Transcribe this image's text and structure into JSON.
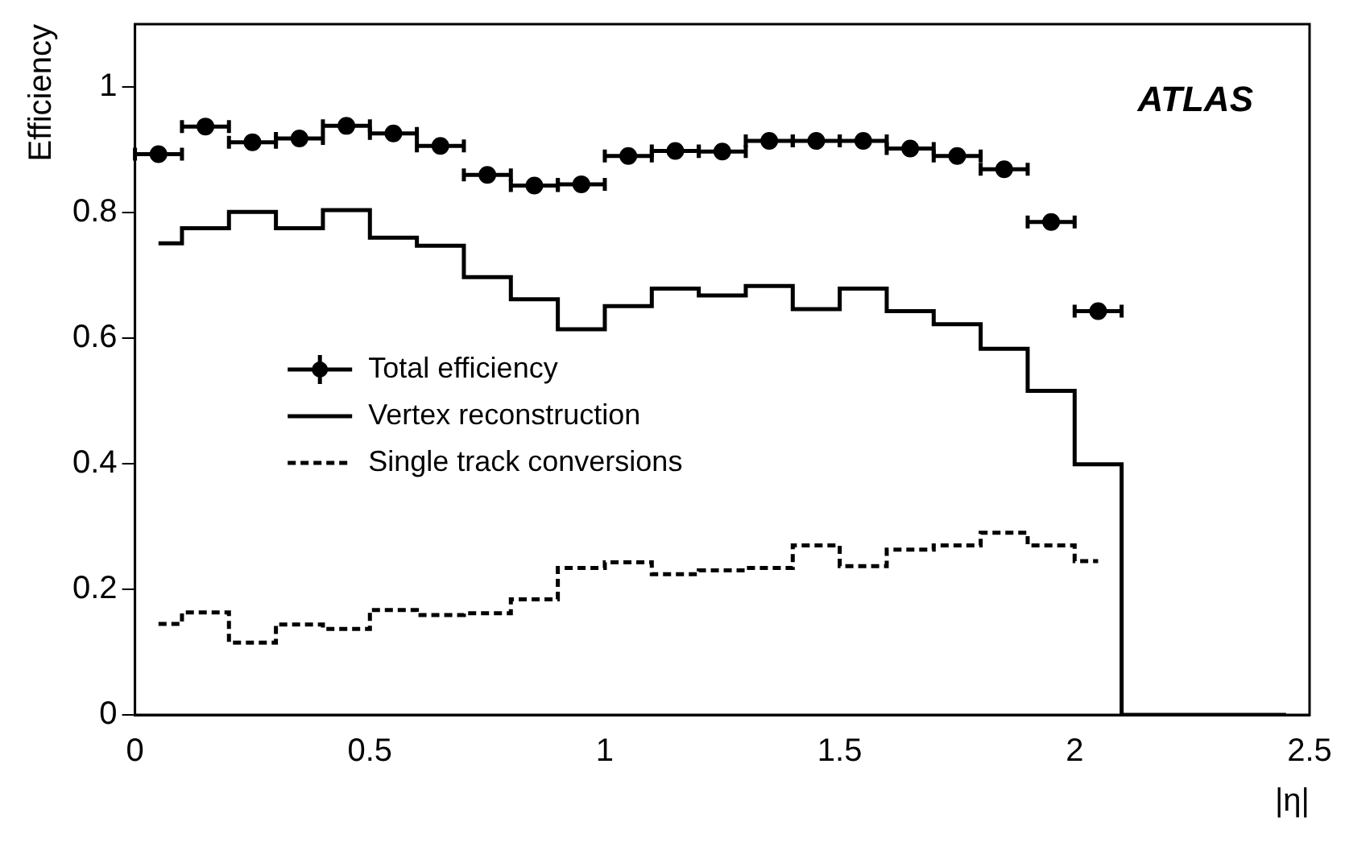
{
  "chart_data": {
    "type": "step",
    "xlabel": "|η|",
    "ylabel": "Efficiency",
    "annotations": [
      "ATLAS"
    ],
    "x": [
      0.05,
      0.15,
      0.25,
      0.35,
      0.45,
      0.55,
      0.65,
      0.75,
      0.85,
      0.95,
      1.05,
      1.15,
      1.25,
      1.35,
      1.45,
      1.55,
      1.65,
      1.75,
      1.85,
      1.95,
      2.05,
      2.15,
      2.25,
      2.35,
      2.45
    ],
    "series": [
      {
        "name": "Total efficiency",
        "type": "scatter",
        "color": "#000000",
        "marker": "circle",
        "x": [
          0.05,
          0.15,
          0.25,
          0.35,
          0.45,
          0.55,
          0.65,
          0.75,
          0.85,
          0.95,
          1.05,
          1.15,
          1.25,
          1.35,
          1.45,
          1.55,
          1.65,
          1.75,
          1.85,
          1.95,
          2.05
        ],
        "values": [
          0.893,
          0.937,
          0.912,
          0.918,
          0.938,
          0.926,
          0.906,
          0.86,
          0.843,
          0.845,
          0.89,
          0.898,
          0.897,
          0.914,
          0.914,
          0.914,
          0.902,
          0.89,
          0.869,
          0.785,
          0.643
        ],
        "xerrors": [
          0.05,
          0.05,
          0.05,
          0.05,
          0.05,
          0.05,
          0.05,
          0.05,
          0.05,
          0.05,
          0.05,
          0.05,
          0.05,
          0.05,
          0.05,
          0.05,
          0.05,
          0.05,
          0.05,
          0.05,
          0.05
        ]
      },
      {
        "name": "Vertex reconstruction",
        "color": "#000000",
        "line_style": "solid",
        "values": [
          0.751,
          0.775,
          0.801,
          0.775,
          0.804,
          0.76,
          0.747,
          0.697,
          0.662,
          0.614,
          0.651,
          0.679,
          0.668,
          0.683,
          0.646,
          0.679,
          0.643,
          0.622,
          0.583,
          0.516,
          0.399,
          0,
          0,
          0,
          0
        ]
      },
      {
        "name": "Single track conversions",
        "type": "step",
        "color": "#000000",
        "line_style": "dashed",
        "x": [
          0.05,
          0.15,
          0.25,
          0.35,
          0.45,
          0.55,
          0.65,
          0.75,
          0.85,
          0.95,
          1.05,
          1.15,
          1.25,
          1.35,
          1.45,
          1.55,
          1.65,
          1.75,
          1.85,
          1.95,
          2.05
        ],
        "values": [
          0.145,
          0.163,
          0.115,
          0.144,
          0.137,
          0.167,
          0.159,
          0.162,
          0.184,
          0.234,
          0.243,
          0.224,
          0.23,
          0.234,
          0.27,
          0.237,
          0.263,
          0.27,
          0.29,
          0.27,
          0.245
        ]
      }
    ],
    "xlim": [
      0,
      2.5
    ],
    "xticks": [
      0,
      0.5,
      1,
      1.5,
      2,
      2.5
    ],
    "ylim": [
      0,
      1.1
    ],
    "yticks": [
      0,
      0.2,
      0.4,
      0.6,
      0.8,
      1
    ],
    "grid": false,
    "legend": "left"
  }
}
